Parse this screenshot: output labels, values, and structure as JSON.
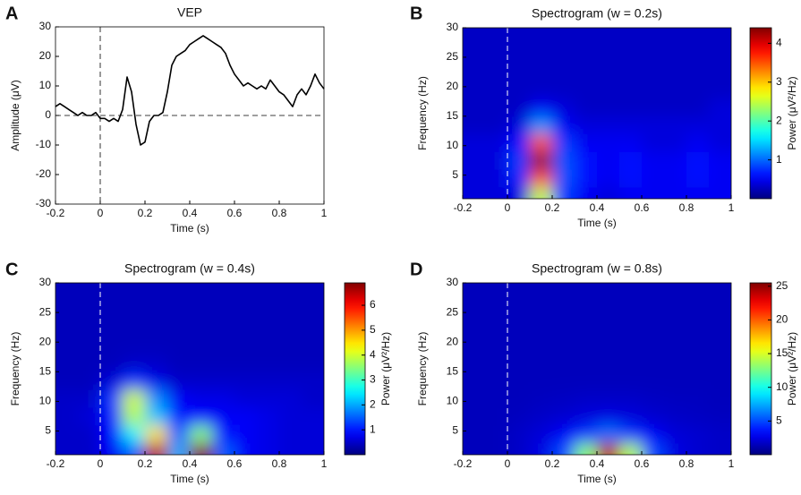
{
  "chart_data": [
    {
      "type": "line",
      "label": "A",
      "title": "VEP",
      "x_label": "Time (s)",
      "y_label": "Amplitude (μV)",
      "color": "#000000",
      "x": [
        -0.2,
        -0.18,
        -0.16,
        -0.14,
        -0.12,
        -0.1,
        -0.08,
        -0.06,
        -0.04,
        -0.02,
        0,
        0.02,
        0.04,
        0.06,
        0.08,
        0.1,
        0.12,
        0.14,
        0.16,
        0.18,
        0.2,
        0.22,
        0.24,
        0.26,
        0.28,
        0.3,
        0.32,
        0.34,
        0.36,
        0.38,
        0.4,
        0.42,
        0.44,
        0.46,
        0.48,
        0.5,
        0.52,
        0.54,
        0.56,
        0.58,
        0.6,
        0.62,
        0.64,
        0.66,
        0.68,
        0.7,
        0.72,
        0.74,
        0.76,
        0.78,
        0.8,
        0.82,
        0.84,
        0.86,
        0.88,
        0.9,
        0.92,
        0.94,
        0.96,
        0.98,
        1
      ],
      "values": [
        3,
        4,
        3,
        2,
        1,
        0,
        1,
        0,
        0,
        1,
        -1,
        -1,
        -2,
        -1,
        -2,
        2,
        13,
        8,
        -3,
        -10,
        -9,
        -2,
        0,
        0,
        1,
        8,
        17,
        20,
        21,
        22,
        24,
        25,
        26,
        27,
        26,
        25,
        24,
        23,
        21,
        17,
        14,
        12,
        10,
        11,
        10,
        9,
        10,
        9,
        12,
        10,
        8,
        7,
        5,
        3,
        7,
        9,
        7,
        10,
        14,
        11,
        9
      ],
      "xlim": [
        -0.2,
        1
      ],
      "xticks": [
        -0.2,
        0,
        0.2,
        0.4,
        0.6,
        0.8,
        1
      ],
      "ylim": [
        -30,
        30
      ],
      "yticks": [
        -30,
        -20,
        -10,
        0,
        10,
        20,
        30
      ]
    },
    {
      "type": "heatmap",
      "label": "B",
      "title": "Spectrogram (w = 0.2s)",
      "x_label": "Time (s)",
      "y_label": "Frequency (Hz)",
      "z_label": "Power (μV²/Hz)",
      "x_edges": [
        -0.2,
        -0.1,
        0,
        0.1,
        0.2,
        0.3,
        0.4,
        0.5,
        0.6,
        0.7,
        0.8,
        0.9,
        1
      ],
      "y_edges": [
        0,
        3,
        6,
        9,
        12,
        15,
        18,
        21,
        24,
        27,
        30
      ],
      "z": [
        [
          0.4,
          0.4,
          0.4,
          2.5,
          0.8,
          0.5,
          0.4,
          0.5,
          0.5,
          0.5,
          0.5,
          0.5
        ],
        [
          0.4,
          0.4,
          0.7,
          3.5,
          0.9,
          0.6,
          0.5,
          0.6,
          0.5,
          0.5,
          0.6,
          0.5
        ],
        [
          0.4,
          0.4,
          0.8,
          4.3,
          0.9,
          0.6,
          0.5,
          0.6,
          0.5,
          0.5,
          0.6,
          0.5
        ],
        [
          0.4,
          0.4,
          0.6,
          3.5,
          0.8,
          0.5,
          0.5,
          0.5,
          0.4,
          0.4,
          0.5,
          0.4
        ],
        [
          0.3,
          0.3,
          0.4,
          1.2,
          0.5,
          0.4,
          0.4,
          0.4,
          0.4,
          0.4,
          0.4,
          0.4
        ],
        [
          0.3,
          0.3,
          0.3,
          0.5,
          0.4,
          0.3,
          0.3,
          0.3,
          0.3,
          0.3,
          0.3,
          0.4
        ],
        [
          0.3,
          0.3,
          0.3,
          0.3,
          0.3,
          0.3,
          0.3,
          0.3,
          0.3,
          0.3,
          0.3,
          0.3
        ],
        [
          0.3,
          0.3,
          0.3,
          0.3,
          0.3,
          0.3,
          0.3,
          0.3,
          0.3,
          0.3,
          0.3,
          0.3
        ],
        [
          0.3,
          0.3,
          0.3,
          0.3,
          0.3,
          0.3,
          0.3,
          0.3,
          0.3,
          0.3,
          0.3,
          0.3
        ],
        [
          0.3,
          0.3,
          0.3,
          0.3,
          0.3,
          0.3,
          0.3,
          0.3,
          0.3,
          0.3,
          0.3,
          0.3
        ]
      ],
      "xlim": [
        -0.2,
        1
      ],
      "xticks": [
        -0.2,
        0,
        0.2,
        0.4,
        0.6,
        0.8,
        1
      ],
      "ylim": [
        1,
        30
      ],
      "yticks": [
        5,
        10,
        15,
        20,
        25,
        30
      ],
      "zlim": [
        0,
        4.4
      ],
      "zticks": [
        1,
        2,
        3,
        4
      ]
    },
    {
      "type": "heatmap",
      "label": "C",
      "title": "Spectrogram (w = 0.4s)",
      "x_label": "Time (s)",
      "y_label": "Frequency (Hz)",
      "z_label": "Power (μV²/Hz)",
      "x_edges": [
        -0.2,
        -0.1,
        0,
        0.1,
        0.2,
        0.3,
        0.4,
        0.5,
        0.6,
        0.7,
        0.8,
        0.9,
        1
      ],
      "y_edges": [
        0,
        3,
        6,
        9,
        12,
        15,
        18,
        21,
        24,
        27,
        30
      ],
      "z": [
        [
          0.5,
          0.5,
          0.8,
          1.5,
          6.5,
          2.0,
          6.8,
          1.5,
          0.8,
          0.7,
          0.6,
          0.6
        ],
        [
          0.5,
          0.5,
          0.9,
          2.5,
          4.5,
          1.5,
          3.5,
          1.0,
          0.8,
          0.7,
          0.6,
          0.6
        ],
        [
          0.5,
          0.6,
          1.0,
          3.8,
          2.2,
          1.0,
          0.9,
          0.8,
          0.8,
          0.7,
          0.6,
          0.6
        ],
        [
          0.5,
          0.5,
          1.2,
          4.0,
          1.8,
          0.8,
          0.7,
          0.7,
          0.6,
          0.6,
          0.6,
          0.5
        ],
        [
          0.4,
          0.4,
          0.6,
          1.2,
          0.7,
          0.5,
          0.5,
          0.5,
          0.5,
          0.5,
          0.5,
          0.5
        ],
        [
          0.4,
          0.4,
          0.4,
          0.5,
          0.5,
          0.4,
          0.4,
          0.4,
          0.4,
          0.4,
          0.4,
          0.4
        ],
        [
          0.4,
          0.4,
          0.4,
          0.4,
          0.4,
          0.4,
          0.4,
          0.4,
          0.4,
          0.4,
          0.4,
          0.4
        ],
        [
          0.4,
          0.4,
          0.4,
          0.4,
          0.4,
          0.4,
          0.4,
          0.4,
          0.4,
          0.4,
          0.4,
          0.4
        ],
        [
          0.4,
          0.4,
          0.4,
          0.4,
          0.4,
          0.4,
          0.4,
          0.4,
          0.4,
          0.4,
          0.4,
          0.4
        ],
        [
          0.4,
          0.4,
          0.4,
          0.4,
          0.4,
          0.4,
          0.4,
          0.4,
          0.4,
          0.4,
          0.4,
          0.4
        ]
      ],
      "xlim": [
        -0.2,
        1
      ],
      "xticks": [
        -0.2,
        0,
        0.2,
        0.4,
        0.6,
        0.8,
        1
      ],
      "ylim": [
        1,
        30
      ],
      "yticks": [
        5,
        10,
        15,
        20,
        25,
        30
      ],
      "zlim": [
        0,
        6.9
      ],
      "zticks": [
        1,
        2,
        3,
        4,
        5,
        6
      ]
    },
    {
      "type": "heatmap",
      "label": "D",
      "title": "Spectrogram (w = 0.8s)",
      "x_label": "Time (s)",
      "y_label": "Frequency (Hz)",
      "z_label": "Power (μV²/Hz)",
      "x_edges": [
        -0.2,
        -0.1,
        0,
        0.1,
        0.2,
        0.3,
        0.4,
        0.5,
        0.6,
        0.7,
        0.8,
        0.9,
        1
      ],
      "y_edges": [
        0,
        3,
        6,
        9,
        12,
        15,
        18,
        21,
        24,
        27,
        30
      ],
      "z": [
        [
          1.5,
          1.5,
          1.8,
          2.5,
          5.0,
          13,
          24,
          14,
          5.0,
          2.5,
          2.0,
          1.8
        ],
        [
          1.5,
          1.5,
          1.8,
          2.2,
          3.0,
          4.5,
          6.0,
          4.5,
          3.0,
          2.2,
          2.0,
          1.8
        ],
        [
          1.5,
          1.5,
          1.6,
          1.8,
          2.0,
          2.3,
          2.5,
          2.3,
          2.0,
          1.8,
          1.7,
          1.6
        ],
        [
          1.5,
          1.5,
          1.5,
          1.6,
          1.7,
          1.8,
          1.8,
          1.8,
          1.7,
          1.6,
          1.6,
          1.5
        ],
        [
          1.5,
          1.5,
          1.5,
          1.5,
          1.5,
          1.5,
          1.5,
          1.5,
          1.5,
          1.5,
          1.5,
          1.5
        ],
        [
          1.5,
          1.5,
          1.5,
          1.5,
          1.5,
          1.5,
          1.5,
          1.5,
          1.5,
          1.5,
          1.5,
          1.5
        ],
        [
          1.5,
          1.5,
          1.5,
          1.5,
          1.5,
          1.5,
          1.5,
          1.5,
          1.5,
          1.5,
          1.5,
          1.5
        ],
        [
          1.5,
          1.5,
          1.5,
          1.5,
          1.5,
          1.5,
          1.5,
          1.5,
          1.5,
          1.5,
          1.5,
          1.5
        ],
        [
          1.5,
          1.5,
          1.5,
          1.5,
          1.5,
          1.5,
          1.5,
          1.5,
          1.5,
          1.5,
          1.5,
          1.5
        ],
        [
          1.5,
          1.5,
          1.5,
          1.5,
          1.5,
          1.5,
          1.5,
          1.5,
          1.5,
          1.5,
          1.5,
          1.5
        ]
      ],
      "xlim": [
        -0.2,
        1
      ],
      "xticks": [
        -0.2,
        0,
        0.2,
        0.4,
        0.6,
        0.8,
        1
      ],
      "ylim": [
        1,
        30
      ],
      "yticks": [
        5,
        10,
        15,
        20,
        25,
        30
      ],
      "zlim": [
        0,
        25.5
      ],
      "zticks": [
        5,
        10,
        15,
        20,
        25
      ]
    }
  ]
}
